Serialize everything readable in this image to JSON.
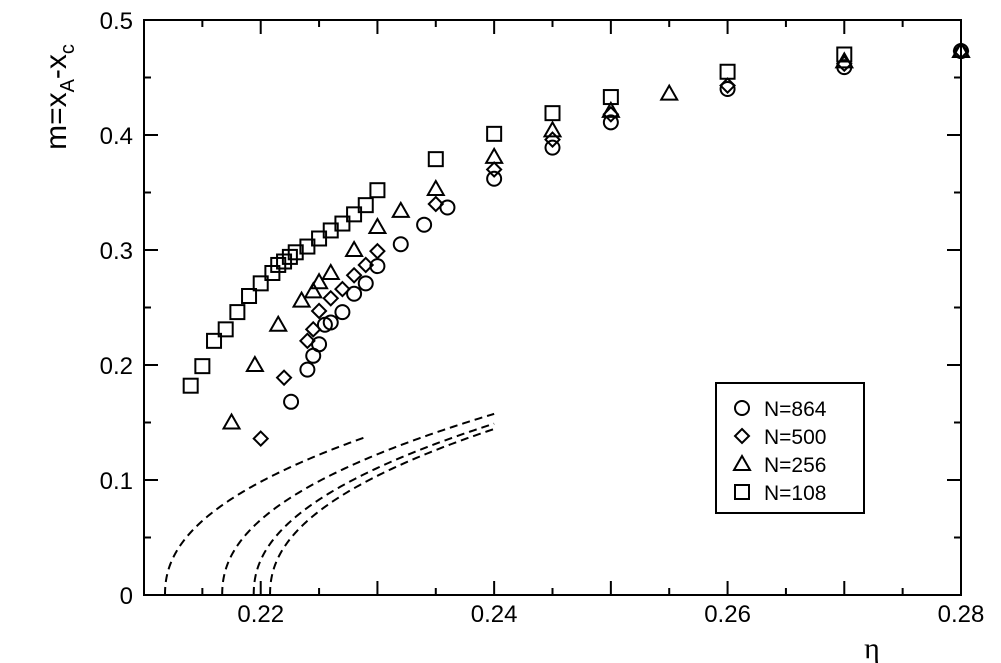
{
  "chart_data": {
    "type": "scatter",
    "title": "",
    "xlabel": "η",
    "ylabel": {
      "base": "m=x",
      "sub1": "A",
      "mid": "-x",
      "sub2": "c"
    },
    "xlim": [
      0.21,
      0.28
    ],
    "ylim": [
      0,
      0.5
    ],
    "xticks": [
      "0.22",
      "0.24",
      "0.26",
      "0.28"
    ],
    "yticks": [
      "0",
      "0.1",
      "0.2",
      "0.3",
      "0.4",
      "0.5"
    ],
    "grid": false,
    "legend_position": "bottom-right",
    "series": [
      {
        "name": "N=864",
        "marker": "circle",
        "points": [
          [
            0.2226,
            0.168
          ],
          [
            0.224,
            0.196
          ],
          [
            0.2245,
            0.208
          ],
          [
            0.225,
            0.218
          ],
          [
            0.2255,
            0.235
          ],
          [
            0.226,
            0.237
          ],
          [
            0.227,
            0.246
          ],
          [
            0.228,
            0.262
          ],
          [
            0.229,
            0.271
          ],
          [
            0.23,
            0.286
          ],
          [
            0.232,
            0.305
          ],
          [
            0.234,
            0.322
          ],
          [
            0.236,
            0.337
          ],
          [
            0.24,
            0.362
          ],
          [
            0.245,
            0.389
          ],
          [
            0.25,
            0.411
          ],
          [
            0.26,
            0.44
          ],
          [
            0.27,
            0.459
          ],
          [
            0.28,
            0.473
          ]
        ]
      },
      {
        "name": "N=500",
        "marker": "diamond",
        "points": [
          [
            0.22,
            0.136
          ],
          [
            0.222,
            0.189
          ],
          [
            0.224,
            0.221
          ],
          [
            0.2245,
            0.231
          ],
          [
            0.225,
            0.247
          ],
          [
            0.226,
            0.258
          ],
          [
            0.227,
            0.266
          ],
          [
            0.228,
            0.278
          ],
          [
            0.229,
            0.287
          ],
          [
            0.23,
            0.299
          ],
          [
            0.235,
            0.34
          ],
          [
            0.24,
            0.37
          ],
          [
            0.245,
            0.396
          ],
          [
            0.25,
            0.418
          ],
          [
            0.26,
            0.443
          ],
          [
            0.27,
            0.462
          ],
          [
            0.28,
            0.473
          ]
        ]
      },
      {
        "name": "N=256",
        "marker": "triangle",
        "points": [
          [
            0.2175,
            0.15
          ],
          [
            0.2195,
            0.2
          ],
          [
            0.2215,
            0.235
          ],
          [
            0.2235,
            0.256
          ],
          [
            0.2245,
            0.264
          ],
          [
            0.225,
            0.272
          ],
          [
            0.226,
            0.28
          ],
          [
            0.228,
            0.3
          ],
          [
            0.23,
            0.32
          ],
          [
            0.232,
            0.334
          ],
          [
            0.235,
            0.353
          ],
          [
            0.24,
            0.381
          ],
          [
            0.245,
            0.404
          ],
          [
            0.25,
            0.421
          ],
          [
            0.255,
            0.436
          ],
          [
            0.27,
            0.464
          ],
          [
            0.28,
            0.473
          ]
        ]
      },
      {
        "name": "N=108",
        "marker": "square",
        "points": [
          [
            0.214,
            0.182
          ],
          [
            0.215,
            0.199
          ],
          [
            0.216,
            0.221
          ],
          [
            0.217,
            0.231
          ],
          [
            0.218,
            0.246
          ],
          [
            0.219,
            0.26
          ],
          [
            0.22,
            0.271
          ],
          [
            0.221,
            0.28
          ],
          [
            0.2215,
            0.287
          ],
          [
            0.222,
            0.29
          ],
          [
            0.2225,
            0.294
          ],
          [
            0.223,
            0.298
          ],
          [
            0.224,
            0.303
          ],
          [
            0.225,
            0.31
          ],
          [
            0.226,
            0.317
          ],
          [
            0.227,
            0.323
          ],
          [
            0.228,
            0.331
          ],
          [
            0.229,
            0.339
          ],
          [
            0.23,
            0.352
          ],
          [
            0.235,
            0.379
          ],
          [
            0.24,
            0.401
          ],
          [
            0.245,
            0.419
          ],
          [
            0.25,
            0.433
          ],
          [
            0.26,
            0.455
          ],
          [
            0.27,
            0.47
          ]
        ]
      }
    ],
    "fits": [
      {
        "series": "N=864",
        "x_c": 0.2208,
        "a": 0.855,
        "beta": 0.45,
        "x_end": 0.24
      },
      {
        "series": "N=500",
        "x_c": 0.2194,
        "a": 0.855,
        "beta": 0.45,
        "x_end": 0.24
      },
      {
        "series": "N=256",
        "x_c": 0.2167,
        "a": 0.855,
        "beta": 0.45,
        "x_end": 0.24
      },
      {
        "series": "N=108",
        "x_c": 0.2118,
        "a": 0.855,
        "beta": 0.45,
        "x_end": 0.229
      }
    ]
  }
}
